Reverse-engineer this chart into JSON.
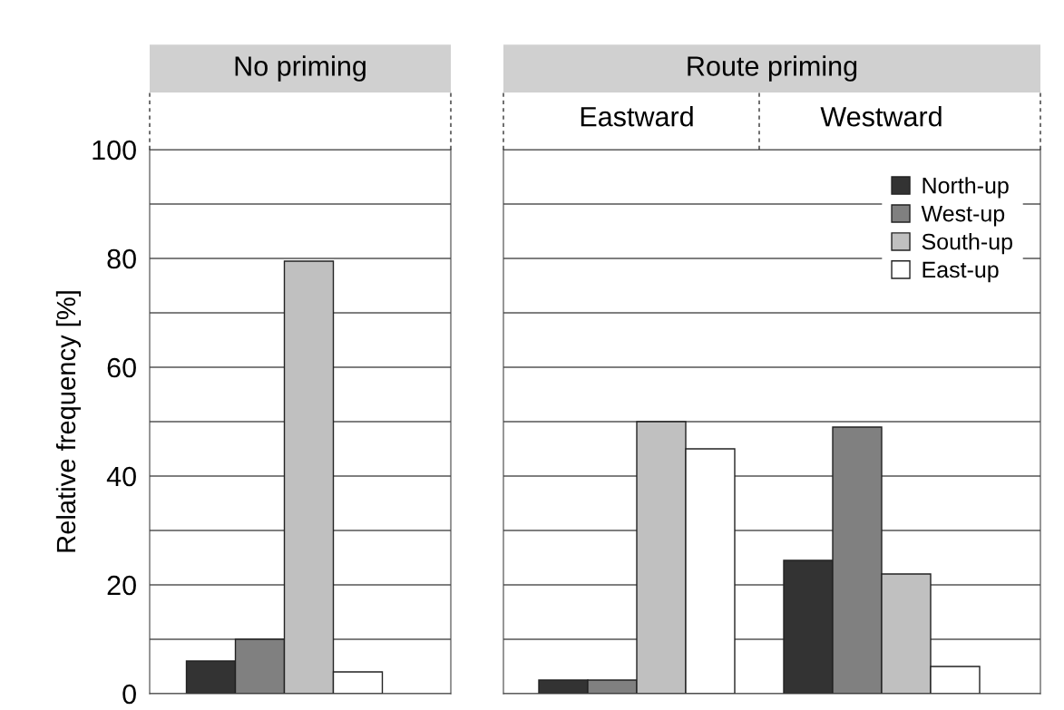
{
  "chart_data": [
    {
      "type": "bar",
      "title": "No priming",
      "ylabel": "Relative frequency [%]",
      "categories": [
        null
      ],
      "tick_labels": "y",
      "grid": "y",
      "legend": false,
      "ylim": [
        0,
        100
      ],
      "yticks": [
        0,
        {
          "value": 10,
          "label": null
        },
        20,
        {
          "value": 30,
          "label": null
        },
        40,
        {
          "value": 50,
          "label": null
        },
        60,
        {
          "value": 70,
          "label": null
        },
        80,
        {
          "value": 90,
          "label": null
        },
        100
      ],
      "series": [
        {
          "color": "#333333",
          "values": [
            6
          ]
        },
        {
          "color": "#808080",
          "values": [
            10
          ]
        },
        {
          "color": "#c0c0c0",
          "values": [
            79.5
          ]
        },
        {
          "color": "#ffffff",
          "values": [
            4
          ]
        }
      ]
    },
    {
      "type": "bar",
      "title": "Route priming",
      "categories": [
        "Eastward",
        "Westward"
      ],
      "tick_labels": "x",
      "grid": "y",
      "legend": "top right",
      "ylim": [
        0,
        100
      ],
      "yticks": [
        0,
        {
          "value": 10,
          "label": null
        },
        20,
        {
          "value": 30,
          "label": null
        },
        40,
        {
          "value": 50,
          "label": null
        },
        60,
        {
          "value": 70,
          "label": null
        },
        80,
        {
          "value": 90,
          "label": null
        },
        100
      ],
      "series": [
        {
          "name": "North-up",
          "color": "#333333",
          "values": [
            2.5,
            24.5
          ]
        },
        {
          "name": "West-up",
          "color": "#808080",
          "values": [
            2.5,
            49
          ]
        },
        {
          "name": "South-up",
          "color": "#c0c0c0",
          "values": [
            50,
            22
          ]
        },
        {
          "name": "East-up",
          "color": "#ffffff",
          "values": [
            45,
            5
          ]
        }
      ]
    }
  ]
}
